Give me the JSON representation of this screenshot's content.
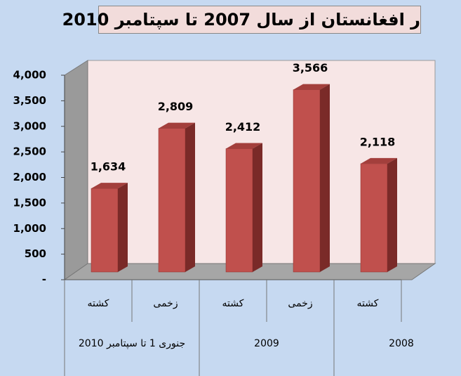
{
  "chart_data": {
    "type": "bar3d",
    "title": "ر افغانستان از سال 2007 تا سپتامبر 2010",
    "categories": [
      "کشته",
      "زخمی",
      "کشته",
      "زخمی",
      "کشته"
    ],
    "groups": [
      "جنوری 1 تا سپتامبر 2010",
      "2009",
      "2008"
    ],
    "values": [
      1634,
      2809,
      2412,
      3566,
      2118
    ],
    "value_labels": [
      "1,634",
      "2,809",
      "2,412",
      "3,566",
      "2,118"
    ],
    "color": "#c0504d",
    "ylim": [
      0,
      4000
    ],
    "yticks": [
      {
        "value": 0,
        "label": "-"
      },
      500,
      {
        "value": 1000,
        "label": "1,000"
      },
      {
        "value": 1500,
        "label": "1,500"
      },
      {
        "value": 2000,
        "label": "2,000"
      },
      {
        "value": 2500,
        "label": "2,500"
      },
      {
        "value": 3000,
        "label": "3,000"
      },
      {
        "value": 3500,
        "label": "3,500"
      },
      {
        "value": 4000,
        "label": "4,000"
      }
    ]
  }
}
